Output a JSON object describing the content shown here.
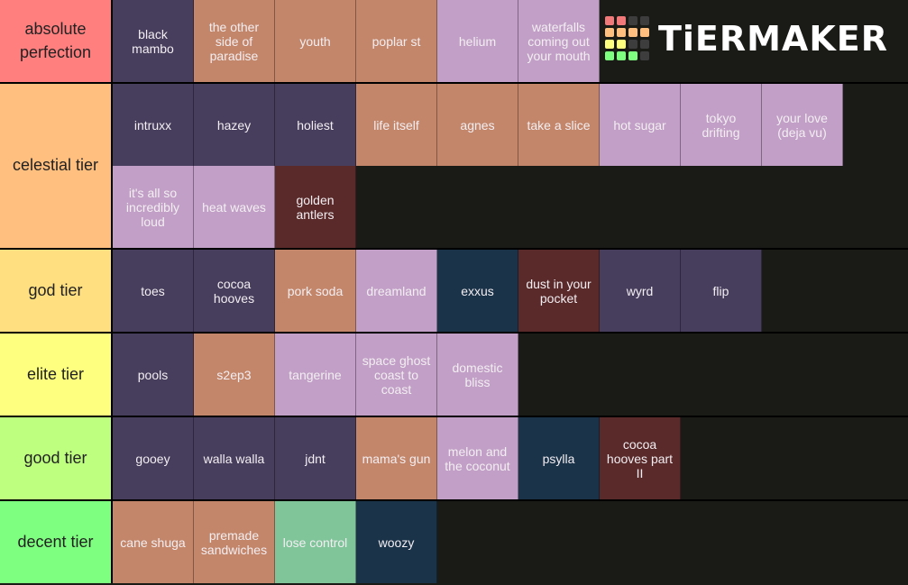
{
  "colors": {
    "purple": "#473d5c",
    "orange": "#c4866a",
    "lavender": "#c29fc6",
    "navy": "#1b3349",
    "maroon": "#5a2a2a",
    "green": "#80c49a"
  },
  "logo": {
    "text": "TiERMAKER",
    "grid": [
      "#f27979",
      "#f27979",
      "#3d3d3d",
      "#3d3d3d",
      "#ffbf7f",
      "#ffbf7f",
      "#ffbf7f",
      "#ffbf7f",
      "#ffff7f",
      "#ffff7f",
      "#3d3d3d",
      "#3d3d3d",
      "#7fff7f",
      "#7fff7f",
      "#7fff7f",
      "#3d3d3d"
    ]
  },
  "tiers": [
    {
      "label": "absolute perfection",
      "color": "#ff7f7f",
      "items": [
        {
          "t": "black mambo",
          "c": "purple"
        },
        {
          "t": "the other side of paradise",
          "c": "orange"
        },
        {
          "t": "youth",
          "c": "orange"
        },
        {
          "t": "poplar st",
          "c": "orange"
        },
        {
          "t": "helium",
          "c": "lavender"
        },
        {
          "t": "waterfalls coming out your mouth",
          "c": "lavender"
        }
      ]
    },
    {
      "label": "celestial tier",
      "color": "#ffbf7f",
      "items": [
        {
          "t": "intruxx",
          "c": "purple"
        },
        {
          "t": "hazey",
          "c": "purple"
        },
        {
          "t": "holiest",
          "c": "purple"
        },
        {
          "t": "life itself",
          "c": "orange"
        },
        {
          "t": "agnes",
          "c": "orange"
        },
        {
          "t": "take a slice",
          "c": "orange"
        },
        {
          "t": "hot sugar",
          "c": "lavender"
        },
        {
          "t": "tokyo drifting",
          "c": "lavender"
        },
        {
          "t": "your love (deja vu)",
          "c": "lavender"
        },
        {
          "t": "it's all so incredibly loud",
          "c": "lavender"
        },
        {
          "t": "heat waves",
          "c": "lavender"
        },
        {
          "t": "golden antlers",
          "c": "maroon"
        }
      ]
    },
    {
      "label": "god tier",
      "color": "#ffdf7f",
      "items": [
        {
          "t": "toes",
          "c": "purple"
        },
        {
          "t": "cocoa hooves",
          "c": "purple"
        },
        {
          "t": "pork soda",
          "c": "orange"
        },
        {
          "t": "dreamland",
          "c": "lavender"
        },
        {
          "t": "exxus",
          "c": "navy"
        },
        {
          "t": "dust in your pocket",
          "c": "maroon"
        },
        {
          "t": "wyrd",
          "c": "purple"
        },
        {
          "t": "flip",
          "c": "purple"
        }
      ]
    },
    {
      "label": "elite tier",
      "color": "#ffff7f",
      "items": [
        {
          "t": "pools",
          "c": "purple"
        },
        {
          "t": "s2ep3",
          "c": "orange"
        },
        {
          "t": "tangerine",
          "c": "lavender"
        },
        {
          "t": "space ghost coast to coast",
          "c": "lavender"
        },
        {
          "t": "domestic bliss",
          "c": "lavender"
        }
      ]
    },
    {
      "label": "good tier",
      "color": "#bfff7f",
      "items": [
        {
          "t": "gooey",
          "c": "purple"
        },
        {
          "t": "walla walla",
          "c": "purple"
        },
        {
          "t": "jdnt",
          "c": "purple"
        },
        {
          "t": "mama's gun",
          "c": "orange"
        },
        {
          "t": "melon and the coconut",
          "c": "lavender"
        },
        {
          "t": "psylla",
          "c": "navy"
        },
        {
          "t": "cocoa hooves part II",
          "c": "maroon"
        }
      ]
    },
    {
      "label": "decent tier",
      "color": "#7fff7f",
      "items": [
        {
          "t": "cane shuga",
          "c": "orange"
        },
        {
          "t": "premade sandwiches",
          "c": "orange"
        },
        {
          "t": "lose control",
          "c": "green"
        },
        {
          "t": "woozy",
          "c": "navy"
        }
      ]
    }
  ]
}
